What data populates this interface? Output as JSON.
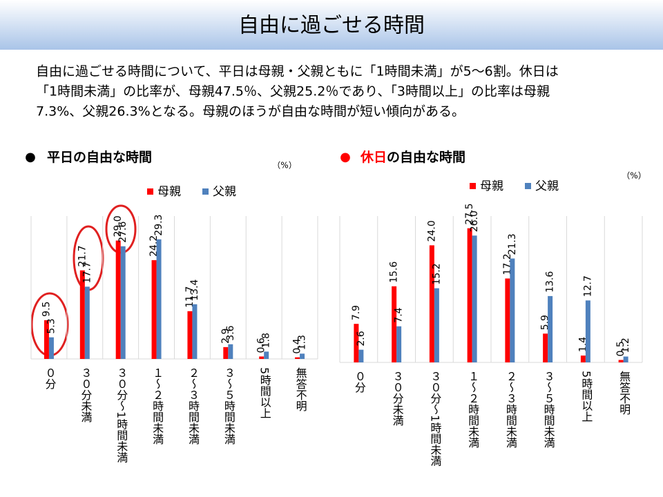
{
  "header": {
    "title": "自由に過ごせる時間"
  },
  "description": [
    "自由に過ごせる時間について、平日は母親・父親ともに「1時間未満」が5～6割。休日は",
    "「1時間未満」の比率が、母親47.5％、父親25.2％であり、「3時間以上」の比率は母親",
    "7.3%、父親26.3%となる。母親のほうが自由な時間が短い傾向がある。"
  ],
  "chart_data": [
    {
      "type": "bar",
      "bullet": "●",
      "bullet_color": "#000000",
      "title": [
        "平日の自由な時間"
      ],
      "title_colors": [
        "#000000"
      ],
      "unit_label": "（%）",
      "categories": [
        "０分",
        "３０分未満",
        "３０分～1時間未満",
        "１～２時間未満",
        "２～３時間未満",
        "３～５時間未満",
        "5時間以上",
        "無答不明"
      ],
      "ylim": [
        0,
        35
      ],
      "series": [
        {
          "name": "母親",
          "color": "#ff0000",
          "values": [
            9.5,
            21.7,
            29,
            24.2,
            11.7,
            2.9,
            0.6,
            0.4
          ],
          "value_labels": [
            "9.5",
            "21.7",
            "29.0",
            "24.2",
            "11.7",
            "2.9",
            "0.6",
            "0.4"
          ]
        },
        {
          "name": "父親",
          "color": "#4f81bd",
          "values": [
            5.3,
            17.7,
            27.6,
            29.3,
            13.4,
            3.6,
            1.8,
            1.3
          ],
          "value_labels": [
            "5.3",
            "17.7",
            "27.6",
            "29.3",
            "13.4",
            "3.6",
            "1.8",
            "1.3"
          ]
        }
      ]
    },
    {
      "type": "bar",
      "bullet": "●",
      "bullet_color": "#ff0000",
      "title": [
        "休日",
        "の自由な時間"
      ],
      "title_colors": [
        "#ff0000",
        "#000000"
      ],
      "unit_label": "（%）",
      "categories": [
        "０分",
        "３０分未満",
        "３０分～1時間未満",
        "１～２時間未満",
        "２～３時間未満",
        "３～５時間未満",
        "5時間以上",
        "無答不明"
      ],
      "ylim": [
        0,
        30
      ],
      "series": [
        {
          "name": "母親",
          "color": "#ff0000",
          "values": [
            7.9,
            15.6,
            24,
            27.5,
            17.2,
            5.9,
            1.4,
            0.5
          ],
          "value_labels": [
            "7.9",
            "15.6",
            "24.0",
            "27.5",
            "17.2",
            "5.9",
            "1.4",
            "0.5"
          ]
        },
        {
          "name": "父親",
          "color": "#4f81bd",
          "values": [
            2.6,
            7.4,
            15.2,
            26,
            21.3,
            13.6,
            12.7,
            1.2
          ],
          "value_labels": [
            "2.6",
            "7.4",
            "15.2",
            "26.0",
            "21.3",
            "13.6",
            "12.7",
            "1.2"
          ]
        }
      ]
    }
  ]
}
